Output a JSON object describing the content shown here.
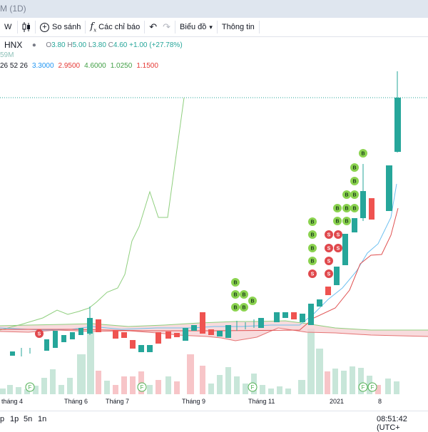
{
  "window": {
    "title": "M (1D)"
  },
  "toolbar": {
    "interval": "W",
    "compare": "So sánh",
    "indicators": "Các chỉ báo",
    "layout": "Biểu đồ",
    "info": "Thông tin"
  },
  "legend": {
    "exchange": "HNX",
    "o_label": "O",
    "o_value": "3.80",
    "h_label": "H",
    "h_value": "5.00",
    "l_label": "L",
    "l_value": "3.80",
    "c_label": "C",
    "c_value": "4.60",
    "change": "+1.00 (+27.78%)",
    "volume_partial": "59M",
    "ichimoku_params": "26 52 26",
    "ichimoku_values": [
      "3.3000",
      "2.9500",
      "4.6000",
      "1.0250",
      "1.1500"
    ]
  },
  "colors": {
    "up": "#26a69a",
    "down": "#ef5350",
    "vol_up": "#c8e6d9",
    "vol_down": "#f7c5c8",
    "cloud_fill": "#f6d2d5",
    "buy_marker": "#8bd34f",
    "sell_marker": "#e0484c",
    "chikou": "#8fcf7e",
    "tenkan": "#6ec0f0",
    "kijun": "#e05050"
  },
  "markers": {
    "buy": "B",
    "sell": "S",
    "flag": "F"
  },
  "timeaxis": [
    "tháng 4",
    "Tháng 6",
    "Tháng 7",
    "Tháng 9",
    "Tháng 11",
    "2021",
    "8"
  ],
  "bottombar": {
    "ranges": [
      "p",
      "1p",
      "5n",
      "1n"
    ],
    "clock": "08:51:42 (UTC+"
  }
}
